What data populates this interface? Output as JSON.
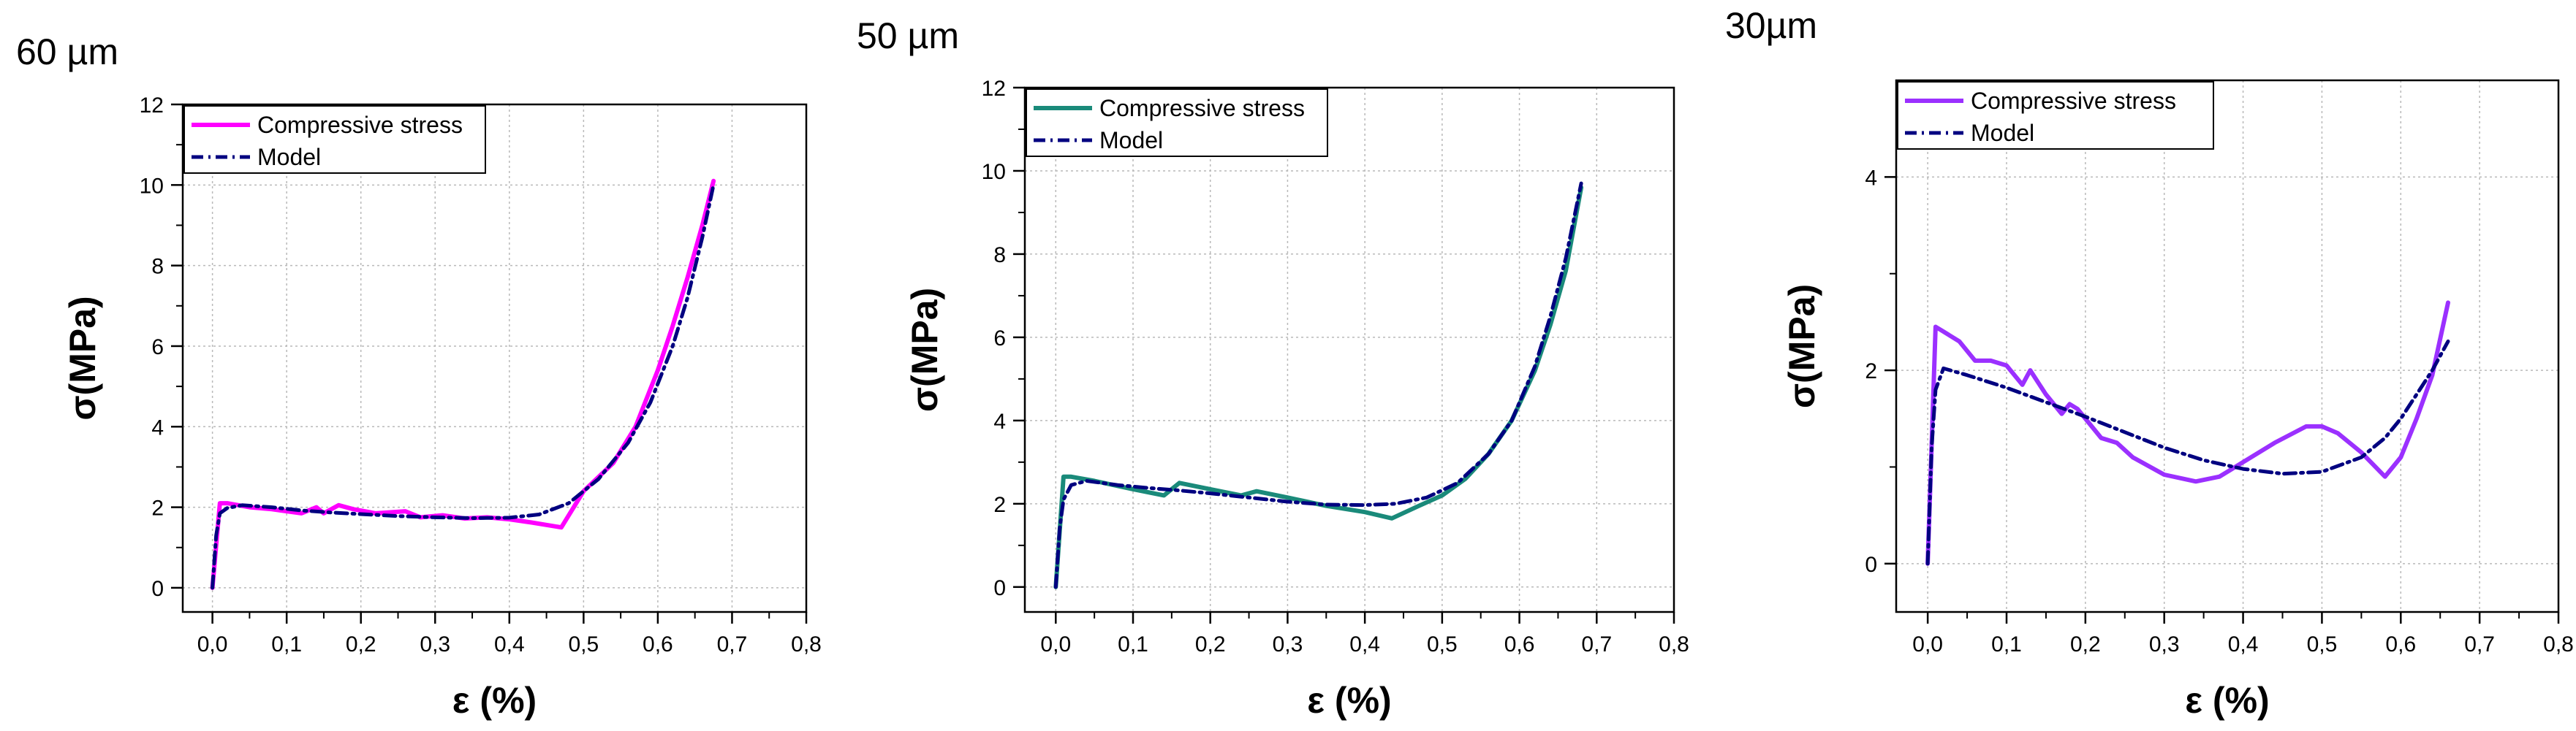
{
  "chart_data": [
    {
      "type": "line",
      "title": "60 µm",
      "xlabel": "ε (%)",
      "ylabel": "σ(MPa)",
      "xlim": [
        -0.04,
        0.8
      ],
      "ylim": [
        -0.6,
        12
      ],
      "xticks": [
        0.0,
        0.1,
        0.2,
        0.3,
        0.4,
        0.5,
        0.6,
        0.7,
        0.8
      ],
      "xtick_labels": [
        "0,0",
        "0,1",
        "0,2",
        "0,3",
        "0,4",
        "0,5",
        "0,6",
        "0,7",
        "0,8"
      ],
      "yticks": [
        0,
        2,
        4,
        6,
        8,
        10,
        12
      ],
      "ytick_labels": [
        "0",
        "2",
        "4",
        "6",
        "8",
        "10",
        "12"
      ],
      "grid": true,
      "legend_position": "top-left",
      "series": [
        {
          "name": "Compressive stress",
          "style": "solid",
          "color": "#FF00FF",
          "x": [
            0.0,
            0.01,
            0.02,
            0.05,
            0.08,
            0.12,
            0.14,
            0.15,
            0.17,
            0.19,
            0.22,
            0.26,
            0.28,
            0.31,
            0.34,
            0.37,
            0.4,
            0.43,
            0.47,
            0.5,
            0.54,
            0.57,
            0.6,
            0.62,
            0.64,
            0.66,
            0.675
          ],
          "y": [
            0.0,
            2.1,
            2.1,
            2.0,
            1.95,
            1.85,
            2.0,
            1.85,
            2.05,
            1.95,
            1.85,
            1.9,
            1.75,
            1.8,
            1.72,
            1.75,
            1.7,
            1.62,
            1.5,
            2.4,
            3.1,
            4.0,
            5.4,
            6.5,
            7.7,
            9.0,
            10.1
          ]
        },
        {
          "name": "Model",
          "style": "dashdot",
          "color": "#000080",
          "x": [
            0.0,
            0.005,
            0.01,
            0.02,
            0.04,
            0.08,
            0.12,
            0.16,
            0.2,
            0.25,
            0.3,
            0.35,
            0.4,
            0.44,
            0.48,
            0.52,
            0.56,
            0.59,
            0.62,
            0.64,
            0.66,
            0.675
          ],
          "y": [
            0.0,
            1.3,
            1.85,
            1.98,
            2.05,
            2.0,
            1.92,
            1.87,
            1.83,
            1.78,
            1.75,
            1.73,
            1.74,
            1.82,
            2.1,
            2.7,
            3.6,
            4.6,
            6.0,
            7.2,
            8.7,
            10.0
          ]
        }
      ]
    },
    {
      "type": "line",
      "title": "50 µm",
      "xlabel": "ε (%)",
      "ylabel": "σ(MPa)",
      "xlim": [
        -0.04,
        0.8
      ],
      "ylim": [
        -0.6,
        12
      ],
      "xticks": [
        0.0,
        0.1,
        0.2,
        0.3,
        0.4,
        0.5,
        0.6,
        0.7,
        0.8
      ],
      "xtick_labels": [
        "0,0",
        "0,1",
        "0,2",
        "0,3",
        "0,4",
        "0,5",
        "0,6",
        "0,7",
        "0,8"
      ],
      "yticks": [
        0,
        2,
        4,
        6,
        8,
        10,
        12
      ],
      "ytick_labels": [
        "0",
        "2",
        "4",
        "6",
        "8",
        "10",
        "12"
      ],
      "grid": true,
      "legend_position": "top-left",
      "series": [
        {
          "name": "Compressive stress",
          "style": "solid",
          "color": "#1A8A7A",
          "x": [
            0.0,
            0.01,
            0.02,
            0.05,
            0.1,
            0.14,
            0.16,
            0.2,
            0.24,
            0.26,
            0.3,
            0.35,
            0.4,
            0.435,
            0.47,
            0.5,
            0.53,
            0.56,
            0.59,
            0.62,
            0.64,
            0.66,
            0.68
          ],
          "y": [
            0.0,
            2.65,
            2.65,
            2.55,
            2.35,
            2.2,
            2.5,
            2.35,
            2.2,
            2.3,
            2.15,
            1.95,
            1.8,
            1.65,
            1.95,
            2.2,
            2.6,
            3.2,
            4.0,
            5.2,
            6.3,
            7.6,
            9.6
          ]
        },
        {
          "name": "Model",
          "style": "dashdot",
          "color": "#000080",
          "x": [
            0.0,
            0.005,
            0.01,
            0.02,
            0.04,
            0.08,
            0.12,
            0.16,
            0.2,
            0.25,
            0.3,
            0.35,
            0.4,
            0.44,
            0.48,
            0.52,
            0.56,
            0.59,
            0.62,
            0.64,
            0.66,
            0.68
          ],
          "y": [
            0.0,
            1.4,
            2.1,
            2.45,
            2.55,
            2.45,
            2.38,
            2.32,
            2.25,
            2.15,
            2.05,
            1.98,
            1.97,
            2.0,
            2.15,
            2.5,
            3.2,
            4.0,
            5.3,
            6.5,
            7.9,
            9.7
          ]
        }
      ]
    },
    {
      "type": "line",
      "title": "30µm",
      "xlabel": "ε (%)",
      "ylabel": "σ(MPa)",
      "xlim": [
        -0.04,
        0.8
      ],
      "ylim": [
        -0.5,
        5.0
      ],
      "xticks": [
        0.0,
        0.1,
        0.2,
        0.3,
        0.4,
        0.5,
        0.6,
        0.7,
        0.8
      ],
      "xtick_labels": [
        "0,0",
        "0,1",
        "0,2",
        "0,3",
        "0,4",
        "0,5",
        "0,6",
        "0,7",
        "0,8"
      ],
      "yticks": [
        0,
        2,
        4
      ],
      "ytick_labels": [
        "0",
        "2",
        "4"
      ],
      "grid": true,
      "legend_position": "top-left",
      "series": [
        {
          "name": "Compressive stress",
          "style": "solid",
          "color": "#9B30FF",
          "x": [
            0.0,
            0.01,
            0.02,
            0.04,
            0.06,
            0.08,
            0.1,
            0.12,
            0.13,
            0.15,
            0.17,
            0.18,
            0.19,
            0.2,
            0.22,
            0.24,
            0.26,
            0.3,
            0.34,
            0.37,
            0.4,
            0.44,
            0.48,
            0.5,
            0.52,
            0.55,
            0.58,
            0.6,
            0.62,
            0.64,
            0.66
          ],
          "y": [
            0.0,
            2.45,
            2.4,
            2.3,
            2.1,
            2.1,
            2.05,
            1.85,
            2.0,
            1.75,
            1.55,
            1.65,
            1.6,
            1.5,
            1.3,
            1.25,
            1.1,
            0.92,
            0.85,
            0.9,
            1.05,
            1.25,
            1.42,
            1.42,
            1.35,
            1.15,
            0.9,
            1.1,
            1.5,
            1.95,
            2.7
          ]
        },
        {
          "name": "Model",
          "style": "dashdot",
          "color": "#000080",
          "x": [
            0.0,
            0.005,
            0.01,
            0.02,
            0.05,
            0.1,
            0.15,
            0.2,
            0.25,
            0.3,
            0.35,
            0.4,
            0.45,
            0.5,
            0.55,
            0.58,
            0.6,
            0.62,
            0.64,
            0.66
          ],
          "y": [
            0.0,
            1.2,
            1.8,
            2.02,
            1.95,
            1.82,
            1.67,
            1.52,
            1.36,
            1.2,
            1.07,
            0.98,
            0.93,
            0.95,
            1.1,
            1.3,
            1.5,
            1.75,
            2.0,
            2.3
          ]
        }
      ]
    }
  ]
}
